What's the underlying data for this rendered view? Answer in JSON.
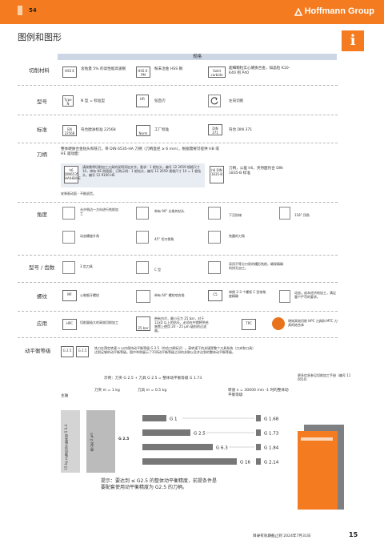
{
  "page": {
    "number": "54",
    "brand": "Hoffmann Group",
    "title": "图例和图形",
    "info_glyph": "i",
    "footer": "目录有效期截止到 2024年7月31日",
    "page_right": "15"
  },
  "header": {
    "band": "规格"
  },
  "rows": {
    "material": {
      "label": "切削材料",
      "items": [
        {
          "badge": "HSS E",
          "text": "含钴量 5% 的高性能高速钢"
        },
        {
          "badge": "HSS E-PM",
          "text": "粉末冶金 HSS 钢"
        },
        {
          "badge": "Solid carbide",
          "text": "超细颗粒实心硬质合金，如晶粒 K10-K40 到 P40"
        }
      ]
    },
    "type": {
      "label": "型号",
      "items": [
        {
          "badge": "Type N",
          "text": "N 型 = 标准型"
        },
        {
          "badge": "HR",
          "text": "铰直刃"
        },
        {
          "badge": "",
          "text": "左向切削"
        }
      ]
    },
    "standard": {
      "label": "标准",
      "items": [
        {
          "badge": "EN 22568",
          "text": "符合欧洲标准 22568"
        },
        {
          "badge": "Norm",
          "text": "工厂标准"
        },
        {
          "badge": "DIN 371",
          "text": "符合 DIN 371"
        }
      ]
    },
    "shank": {
      "label": "刀柄",
      "intro": "整体硬质合金钻头和铣刀，带 DIN 6535-HA 刀柄（刀柄直径 ≥ 6 mm），根据需要可提供 HB 或 HE 驱动面：",
      "note": "请按需将切削加工刀具的说明添加文字。要求：1 根钻头，编号 12 2659 规格尺寸 10，带有 HE 侧固面；订购示例：1 根钻头，编号 12 2659 规格尺寸 10 = 1 根钻头，编号 12 9100 HE",
      "badge_left": "h6 DIN6535 HA/HB/HE",
      "badge_right": "h6 DIN 1835-B",
      "right_text": "刀柄，公差 h6，夹持面符合 DIN 1835-B 标准",
      "footnote": "安装驱动面 - 不能退货。"
    },
    "angle": {
      "label": "角度",
      "items": [
        {
          "text": "允许侧边一方向进行铣削加工"
        },
        {
          "text": "带有 90° 尖角的钻头"
        },
        {
          "text": "下沉阶梯"
        },
        {
          "text": "118° 顶角"
        },
        {
          "text": "动态螺旋升角"
        },
        {
          "text": "45° 切刃倒角"
        },
        {
          "text": "铣圆的刀角"
        }
      ]
    },
    "flutes": {
      "label": "型号 / 齿数",
      "items": [
        {
          "text": "3 齿刀具"
        },
        {
          "text": "C 型"
        },
        {
          "text": "采用不等分刃距的槽形铣削，确保精确的排孔加工。"
        }
      ]
    },
    "thread": {
      "label": "螺纹",
      "items": [
        {
          "badge": "MF",
          "text": "公制细牙螺纹"
        },
        {
          "text": "带有 60° 螺纹啮合角"
        },
        {
          "badge": "C5",
          "text": "带倒 2-3 个螺距 C 型带角度精确"
        },
        {
          "text": "动态。成本经济地加工，满足客户严苛的要求。"
        }
      ]
    },
    "application": {
      "label": "应用",
      "items": [
        {
          "badge": "HPC",
          "text": "切削量极大的高效切削加工"
        },
        {
          "badge": "25 bar",
          "text": "带有内冷，最小压力 25 bar，对于 12xD 以上的钻头，必须在中期将供给装置上使用 20 – 25 µm 级别的过滤器。"
        },
        {
          "badge": "TPC",
          "text": ""
        },
        {
          "text": "增效高效切削 HPC 刀具和 MTC 刀具的结合体"
        }
      ]
    },
    "balance": {
      "label": "动平衡等级",
      "badges": [
        "G 2.5",
        "G 2.5"
      ],
      "text": "铣刀在预定转速 n 以内保持动平衡等级 G 2.5（符合刀柄标识）。高转速下的关键是整个刀具系统（刀夹和刀具）达到足够的动平衡等级。图中举例展示了不同动平衡等级之间的关联以及并达到的整体动平衡等级。",
      "example": "示例：刀夹 G 2.5 + 刀具 G 2.5 = 整体动平衡等级 G 1.73",
      "more": "更多信息参见切削加工手册（编号 11 0010）",
      "col_left": "主轴",
      "col_holder": "刀夹 m = 1 kg",
      "col_tool": "刀具 m = 0.5 kg",
      "col_result": "转速 n = 30000 min -1 时的整体动平衡等级",
      "vert_left": "15 kg 主轴的动平衡等级 G 0.4",
      "vert_mid": "偏心距 2 µm",
      "holder_grade": "G 2.5",
      "tip": "提示：要达到 ≤ G2.5 的整体动平衡精度，前提条件是要配套使用动平衡精度为 G2.5 的刀柄。"
    }
  },
  "chart_data": {
    "type": "bar",
    "categories": [
      "G 1",
      "G 2.5",
      "G 6.3",
      "G 16"
    ],
    "series": [
      {
        "values": [
          1.68,
          1.73,
          1.84,
          2.14
        ]
      }
    ],
    "labels": [
      "G 1.68",
      "G 1.73",
      "G 1.84",
      "G 2.14"
    ]
  }
}
